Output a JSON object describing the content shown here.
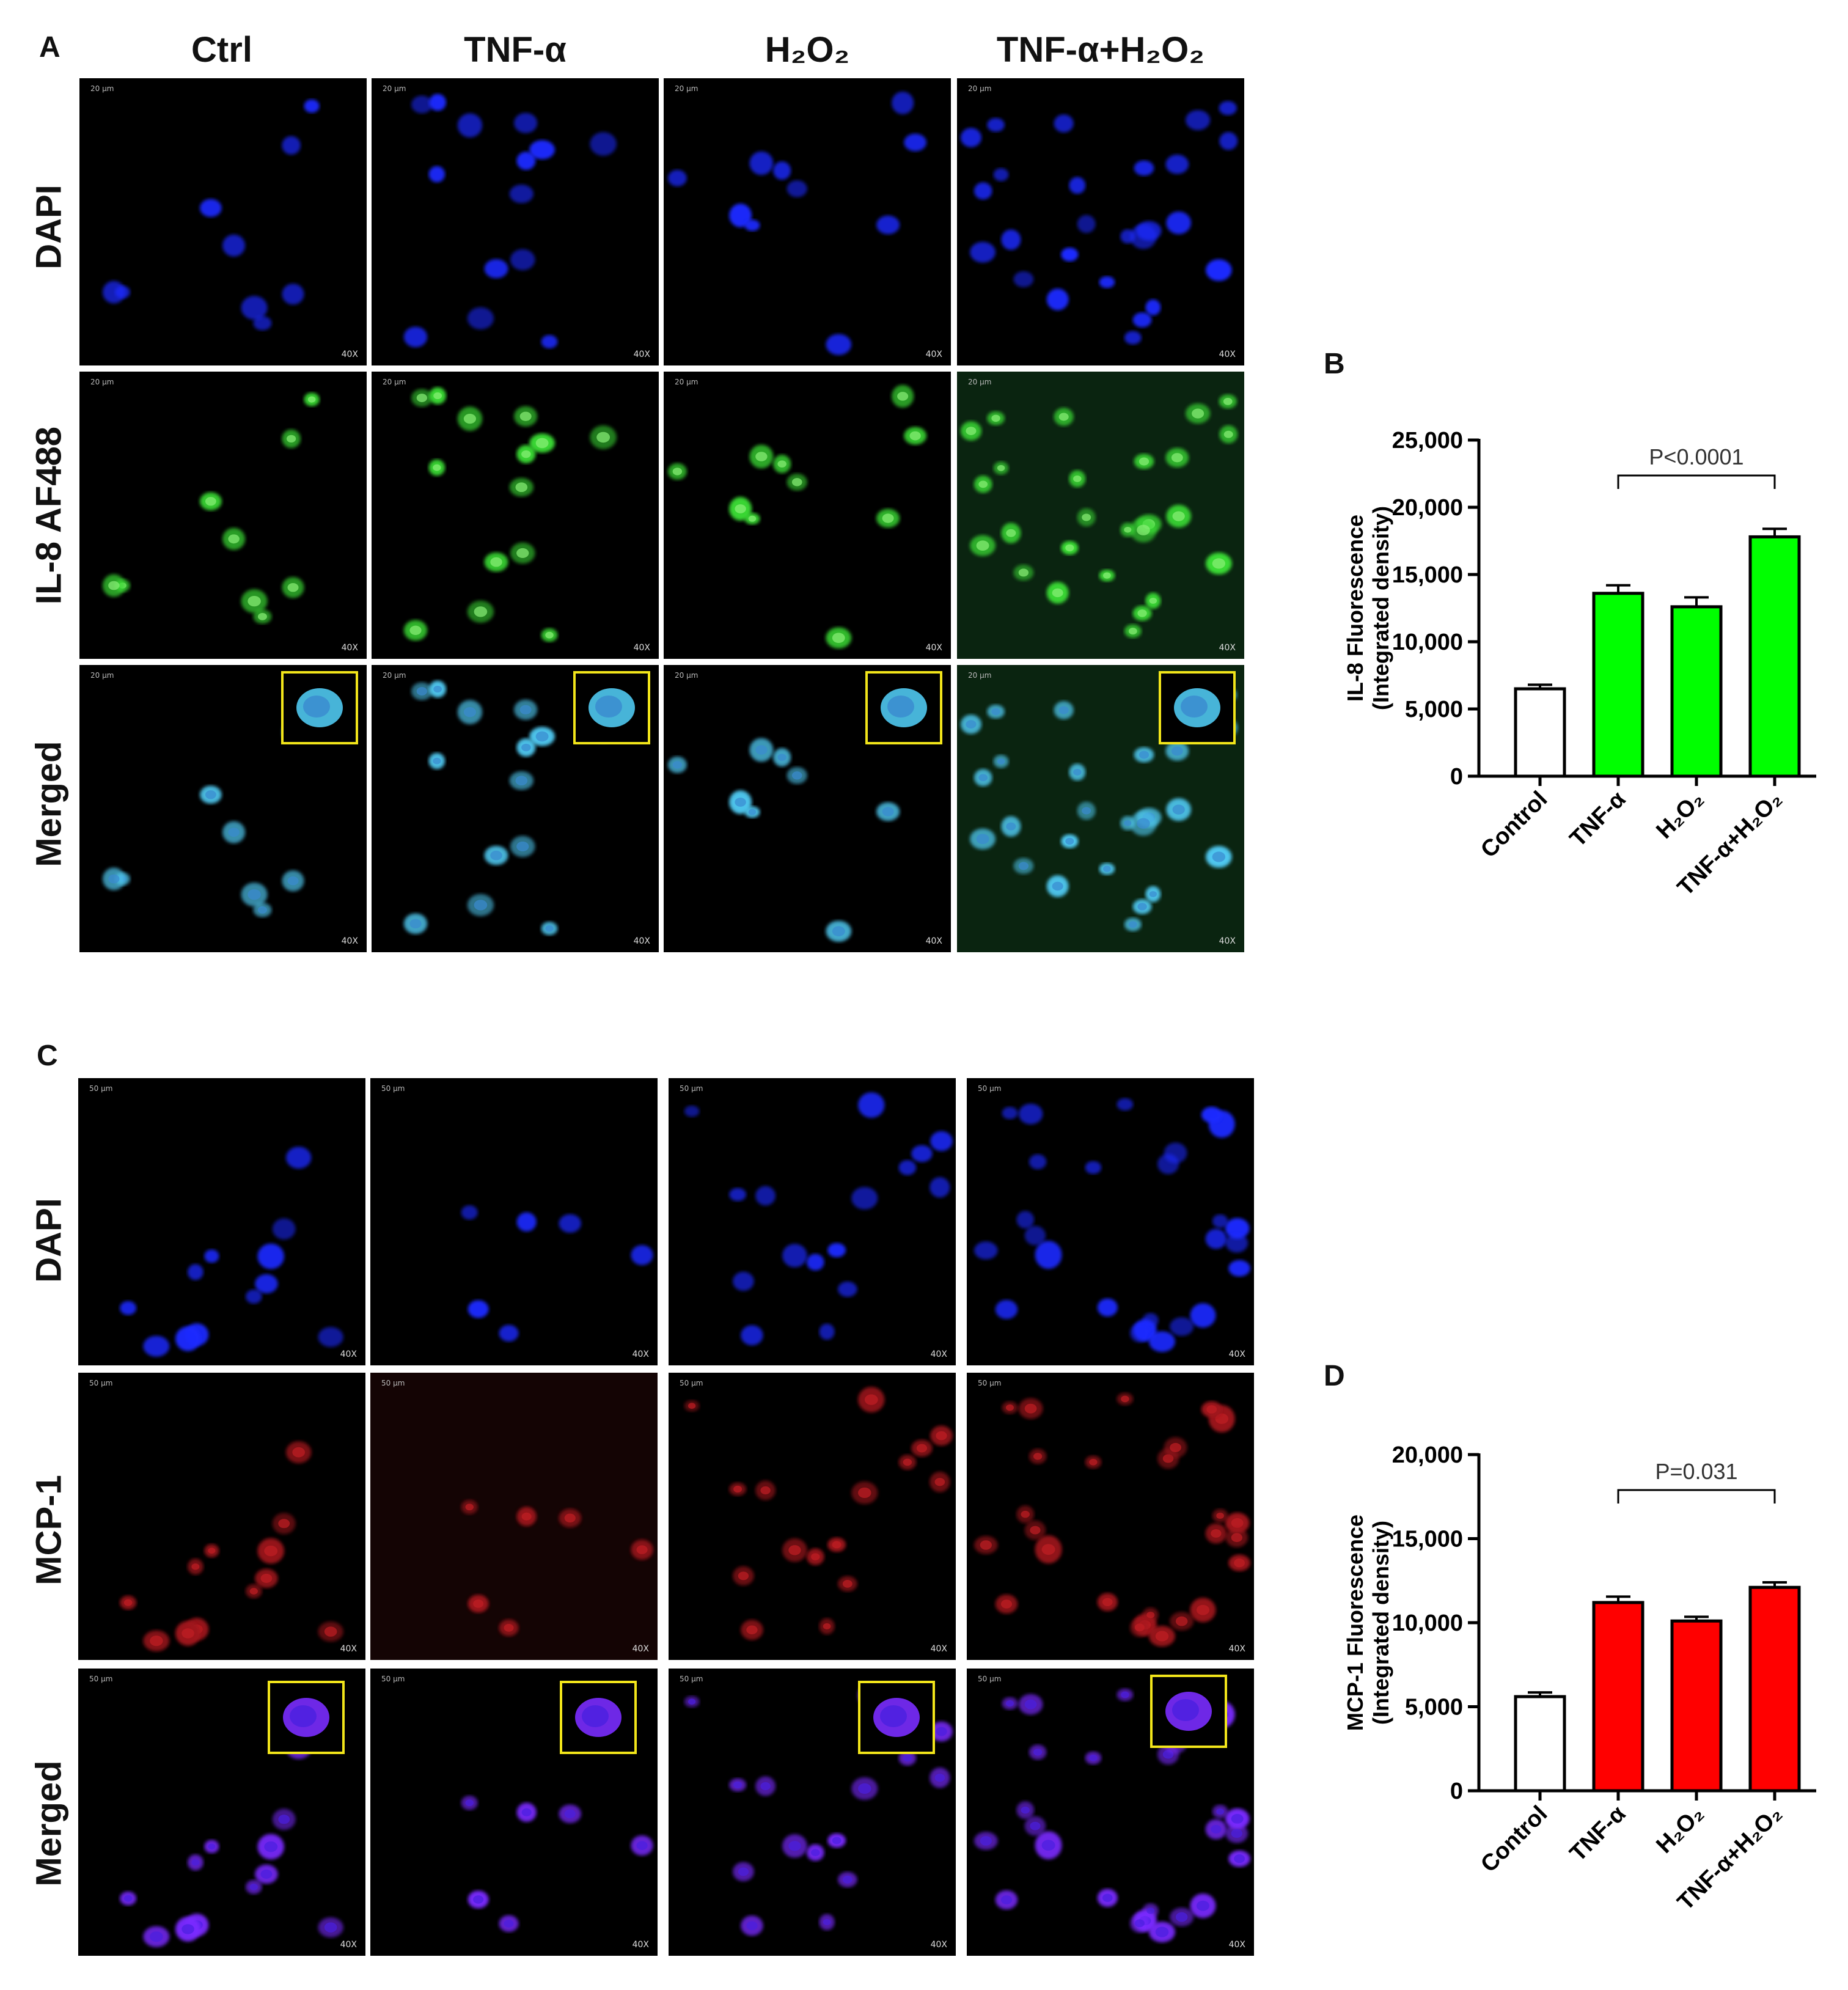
{
  "panel_labels": [
    "A",
    "B",
    "C",
    "D"
  ],
  "columns": [
    "Ctrl",
    "TNF-α",
    "H₂O₂",
    "TNF-α+H₂O₂"
  ],
  "rows_A": [
    "DAPI",
    "IL-8 AF488",
    "Merged"
  ],
  "rows_C": [
    "DAPI",
    "MCP-1",
    "Merged"
  ],
  "micrograph": {
    "magnification": "40X",
    "scale_A": "20 µm",
    "scale_C": "50 µm"
  },
  "colors": {
    "dapi": "#1f2cff",
    "il8": "#3bdc35",
    "merged_A": "#4fc8f0",
    "mcp1": "#a0141a",
    "merged_C": "#7a2cff",
    "inset_border": "#f2e51a",
    "bar_green": "#00ff00",
    "bar_red": "#ff0000",
    "bar_control": "#ffffff"
  },
  "chart_data": [
    {
      "type": "bar",
      "panel": "B",
      "categories": [
        "Control",
        "TNF-α",
        "H₂O₂",
        "TNF-α+H₂O₂"
      ],
      "values": [
        6500,
        13600,
        12600,
        17800
      ],
      "errors": [
        300,
        600,
        700,
        600
      ],
      "fill": [
        "#ffffff",
        "#00ff00",
        "#00ff00",
        "#00ff00"
      ],
      "ylabel_lines": [
        "IL-8 Fluorescence",
        "(Integrated  density)"
      ],
      "yticks": [
        "0",
        "5,000",
        "10,000",
        "15,000",
        "20,000",
        "25,000"
      ],
      "ylim": [
        0,
        25000
      ],
      "annotation": {
        "text": "P<0.0001",
        "from": 1,
        "to": 3
      }
    },
    {
      "type": "bar",
      "panel": "D",
      "categories": [
        "Control",
        "TNF-α",
        "H₂O₂",
        "TNF-α+H₂O₂"
      ],
      "values": [
        5600,
        11200,
        10100,
        12100
      ],
      "errors": [
        250,
        350,
        250,
        300
      ],
      "fill": [
        "#ffffff",
        "#ff0000",
        "#ff0000",
        "#ff0000"
      ],
      "ylabel_lines": [
        "MCP-1 Fluorescence",
        "(Integrated  density)"
      ],
      "yticks": [
        "0",
        "5,000",
        "10,000",
        "15,000",
        "20,000"
      ],
      "ylim": [
        0,
        20000
      ],
      "annotation": {
        "text": "P=0.031",
        "from": 1,
        "to": 3
      }
    }
  ]
}
